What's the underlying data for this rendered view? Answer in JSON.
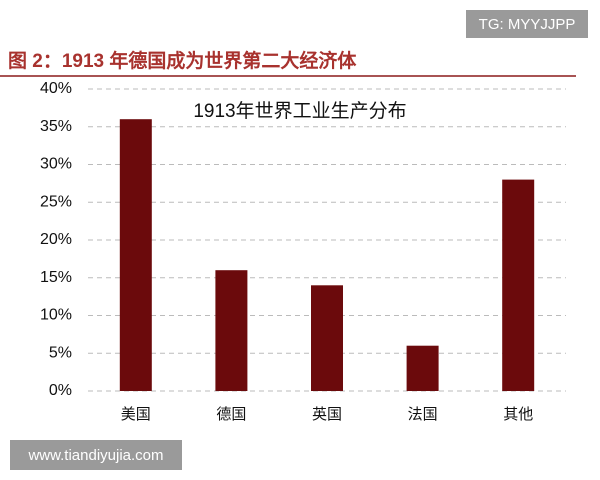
{
  "header": {
    "title": "图 2：1913 年德国成为世界第二大经济体"
  },
  "watermarks": {
    "top": "TG: MYYJJPP",
    "bottom": "www.tiandiyujia.com"
  },
  "chart_data": {
    "type": "bar",
    "title": "1913年世界工业生产分布",
    "categories": [
      "美国",
      "德国",
      "英国",
      "法国",
      "其他"
    ],
    "values": [
      36,
      16,
      14,
      6,
      28
    ],
    "color": "#6b0a0c",
    "ylim": [
      0,
      40
    ],
    "yticks": [
      {
        "value": 0,
        "label": "0%"
      },
      {
        "value": 5,
        "label": "5%"
      },
      {
        "value": 10,
        "label": "10%"
      },
      {
        "value": 15,
        "label": "15%"
      },
      {
        "value": 20,
        "label": "20%"
      },
      {
        "value": 25,
        "label": "25%"
      },
      {
        "value": 30,
        "label": "30%"
      },
      {
        "value": 35,
        "label": "35%"
      },
      {
        "value": 40,
        "label": "40%"
      }
    ],
    "grid": true
  }
}
